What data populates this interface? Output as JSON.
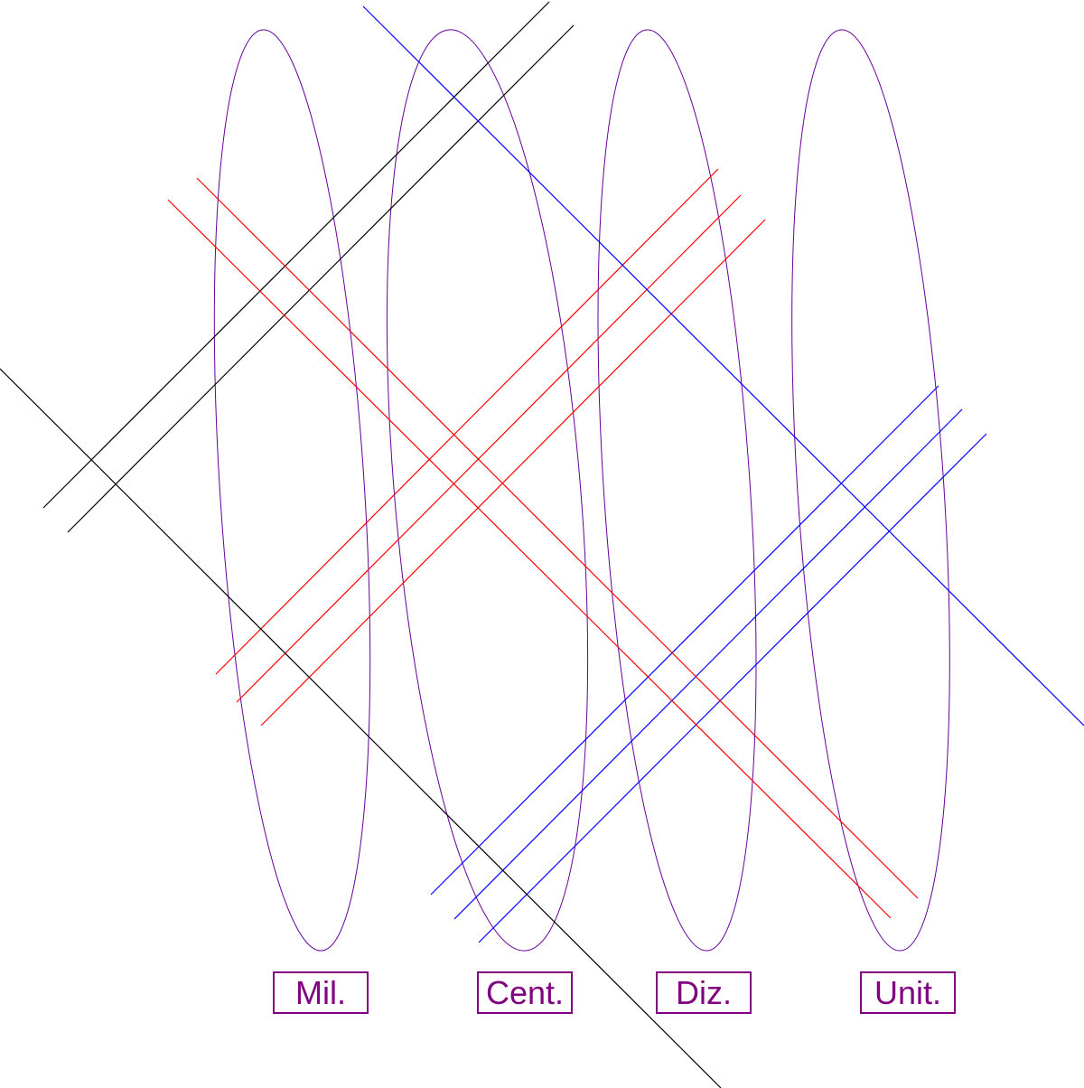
{
  "place_values": {
    "labels": [
      "Mil.",
      "Cent.",
      "Diz.",
      "Unit."
    ]
  },
  "colors": {
    "ellipse": "#660099",
    "factor_a": "#000000",
    "factor_b": "#ff0000",
    "factor_c": "#0000ff",
    "label": "#800080"
  },
  "factors": {
    "first_number_lines": {
      "black": 2,
      "red": 3,
      "blue": 3
    },
    "second_number_lines": {
      "black": 1,
      "red": 2,
      "blue": 1
    }
  }
}
